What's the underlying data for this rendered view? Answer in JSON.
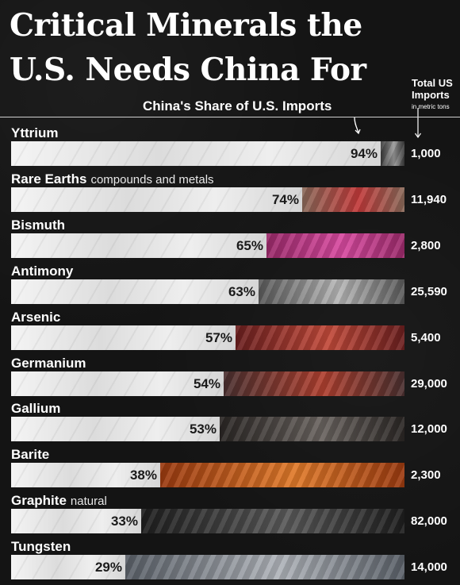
{
  "header": {
    "title_line1": "Critical Minerals the",
    "title_line2": "U.S. Needs China For",
    "share_label": "China's Share of U.S. Imports",
    "imports_label_line1": "Total US",
    "imports_label_line2": "Imports",
    "imports_label_sub": "in metric tons"
  },
  "colors": {
    "background": "#141414",
    "fill": "#e6e6e6"
  },
  "chart_data": {
    "type": "bar",
    "orientation": "horizontal",
    "title": "Critical Minerals the U.S. Needs China For",
    "xlim": [
      0,
      100
    ],
    "grid": false,
    "series": [
      {
        "name": "China's Share of U.S. Imports",
        "unit": "%"
      },
      {
        "name": "Total US Imports in metric tons"
      }
    ],
    "rows": [
      {
        "name": "Yttrium",
        "qualifier": "",
        "share": 94,
        "share_label": "94%",
        "imports": 1000,
        "imports_label": "1,000",
        "rest_color": "#3a3a3a",
        "rest_color2": "#9a9a9a"
      },
      {
        "name": "Rare Earths",
        "qualifier": "compounds and metals",
        "share": 74,
        "share_label": "74%",
        "imports": 11940,
        "imports_label": "11,940",
        "rest_color": "#8a6a5a",
        "rest_color2": "#c23a3a"
      },
      {
        "name": "Bismuth",
        "qualifier": "",
        "share": 65,
        "share_label": "65%",
        "imports": 2800,
        "imports_label": "2,800",
        "rest_color": "#9b2a6a",
        "rest_color2": "#d84aa0"
      },
      {
        "name": "Antimony",
        "qualifier": "",
        "share": 63,
        "share_label": "63%",
        "imports": 25590,
        "imports_label": "25,590",
        "rest_color": "#5a5a5a",
        "rest_color2": "#b8b8b8"
      },
      {
        "name": "Arsenic",
        "qualifier": "",
        "share": 57,
        "share_label": "57%",
        "imports": 5400,
        "imports_label": "5,400",
        "rest_color": "#6a1f1f",
        "rest_color2": "#c24a3a"
      },
      {
        "name": "Germanium",
        "qualifier": "",
        "share": 54,
        "share_label": "54%",
        "imports": 29000,
        "imports_label": "29,000",
        "rest_color": "#4a3030",
        "rest_color2": "#b04030"
      },
      {
        "name": "Gallium",
        "qualifier": "",
        "share": 53,
        "share_label": "53%",
        "imports": 12000,
        "imports_label": "12,000",
        "rest_color": "#2a2624",
        "rest_color2": "#6a6460"
      },
      {
        "name": "Barite",
        "qualifier": "",
        "share": 38,
        "share_label": "38%",
        "imports": 2300,
        "imports_label": "2,300",
        "rest_color": "#9a3a10",
        "rest_color2": "#e07a2a"
      },
      {
        "name": "Graphite",
        "qualifier": "natural",
        "share": 33,
        "share_label": "33%",
        "imports": 82000,
        "imports_label": "82,000",
        "rest_color": "#1e1e1e",
        "rest_color2": "#5a5a5a"
      },
      {
        "name": "Tungsten",
        "qualifier": "",
        "share": 29,
        "share_label": "29%",
        "imports": 14000,
        "imports_label": "14,000",
        "rest_color": "#5a6068",
        "rest_color2": "#b0b4ba"
      }
    ]
  }
}
